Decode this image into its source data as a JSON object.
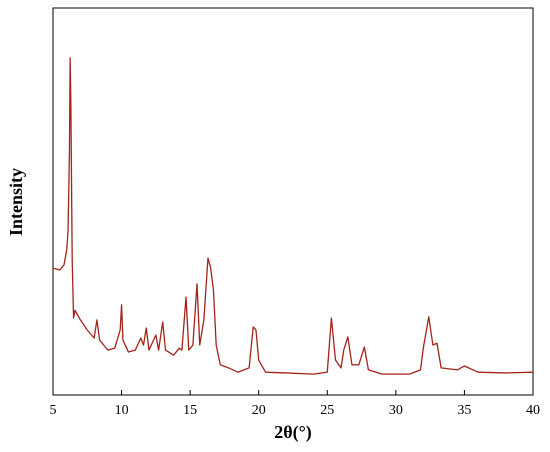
{
  "chart_data": {
    "type": "line",
    "x_label": "2θ(°)",
    "y_label": "Intensity",
    "xlim": [
      5,
      40
    ],
    "xticks": [
      5,
      10,
      15,
      20,
      25,
      30,
      35,
      40
    ],
    "ylim": [
      0,
      100
    ],
    "series": [
      {
        "color": "#a3241b",
        "x": [
          5,
          5.5,
          5.8,
          6.0,
          6.1,
          6.2,
          6.25,
          6.3,
          6.4,
          6.5,
          6.6,
          7,
          7.5,
          8.0,
          8.2,
          8.4,
          9,
          9.5,
          9.9,
          10.0,
          10.1,
          10.5,
          11,
          11.4,
          11.6,
          11.8,
          12,
          12.5,
          12.7,
          13.0,
          13.2,
          13.8,
          14.2,
          14.4,
          14.7,
          14.9,
          15.2,
          15.5,
          15.7,
          16.0,
          16.3,
          16.5,
          16.7,
          16.9,
          17.2,
          17.8,
          18.5,
          19.3,
          19.6,
          19.8,
          20.0,
          20.5,
          22,
          24,
          25.0,
          25.3,
          25.6,
          26.0,
          26.2,
          26.5,
          26.8,
          27.3,
          27.7,
          28,
          29,
          31,
          31.8,
          32.0,
          32.4,
          32.7,
          33.0,
          33.3,
          34.5,
          35,
          36,
          38,
          40
        ],
        "values": [
          32.8,
          32.3,
          33.6,
          37.5,
          42.6,
          63.3,
          87.1,
          76.2,
          34.9,
          19.9,
          21.9,
          19.4,
          16.8,
          14.7,
          19.4,
          14.2,
          11.6,
          12.1,
          16.8,
          23.3,
          14.2,
          11.1,
          11.6,
          14.7,
          12.9,
          17.3,
          11.6,
          15.5,
          11.6,
          18.9,
          11.6,
          10.3,
          12.1,
          11.6,
          25.3,
          11.6,
          12.9,
          28.7,
          12.9,
          19.4,
          35.4,
          32.8,
          27.1,
          12.9,
          7.8,
          7.0,
          5.9,
          7.0,
          17.6,
          16.8,
          9.0,
          5.9,
          5.7,
          5.4,
          5.9,
          19.9,
          9.0,
          7.0,
          11.6,
          15.0,
          7.8,
          7.8,
          12.4,
          6.5,
          5.4,
          5.4,
          6.5,
          12.1,
          20.2,
          12.9,
          13.4,
          7.0,
          6.5,
          7.5,
          5.9,
          5.7,
          5.9
        ]
      }
    ]
  }
}
